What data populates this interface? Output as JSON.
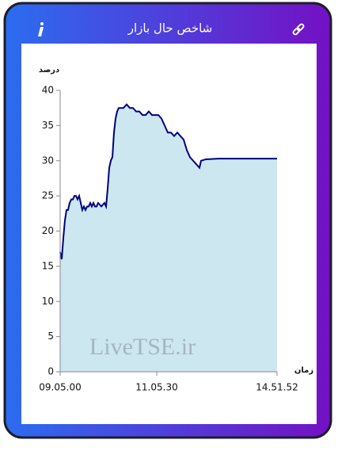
{
  "header": {
    "title": "شاخص حال بازار"
  },
  "chart_data": {
    "type": "area",
    "y_label": "درصد",
    "x_label": "زمان",
    "watermark": "LiveTSE.ir",
    "x": [
      0,
      1,
      2,
      3,
      4,
      5,
      6,
      7,
      8,
      9,
      10,
      11,
      12,
      13,
      14,
      15,
      16,
      17,
      18,
      19,
      20,
      21,
      22,
      23,
      24,
      26,
      28,
      29,
      30,
      31,
      32,
      33,
      34,
      35,
      36,
      37,
      38,
      40,
      42,
      44,
      46,
      48,
      50,
      52,
      54,
      56,
      58,
      60,
      62,
      64,
      66,
      68,
      70,
      72,
      74,
      76,
      78,
      80,
      82,
      84,
      86,
      88,
      89,
      92,
      100,
      110,
      120,
      130,
      137
    ],
    "series": [
      {
        "name": "شاخص",
        "color": "#00007f",
        "fill": "#cde7f1",
        "values": [
          17,
          16,
          19,
          21.5,
          23,
          23,
          24,
          24.5,
          24.5,
          25,
          25,
          24.5,
          25,
          24,
          23,
          23.5,
          23,
          23.5,
          23.5,
          24,
          23.5,
          24,
          23.5,
          23.5,
          24,
          23.5,
          24,
          23.5,
          26,
          29,
          30,
          30.5,
          34,
          36,
          37,
          37.5,
          37.5,
          37.5,
          38,
          37.5,
          37.5,
          37,
          37,
          36.5,
          36.5,
          37,
          36.5,
          36.5,
          36.5,
          36,
          35,
          34,
          34,
          33.5,
          34,
          33.5,
          33,
          31.5,
          30.5,
          30,
          29.5,
          29,
          30,
          30.2,
          30.3,
          30.3,
          30.3,
          30.3,
          30.3
        ]
      }
    ],
    "xlim": [
      0,
      137
    ],
    "xticks": [
      {
        "value": 0,
        "label": "09.05.00"
      },
      {
        "value": 61,
        "label": "11.05.30"
      },
      {
        "value": 137,
        "label": "14.51.52"
      }
    ],
    "ylim": [
      0,
      40
    ],
    "yticks": [
      0,
      5,
      10,
      15,
      20,
      25,
      30,
      35,
      40
    ]
  }
}
